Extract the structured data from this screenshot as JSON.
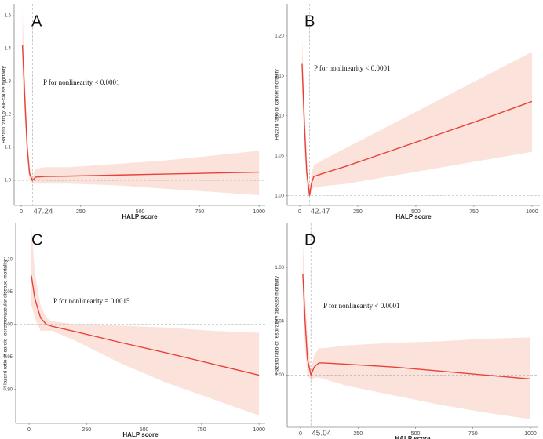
{
  "chart_data": [
    {
      "type": "line",
      "title": "A",
      "annotation": "P for nonlinearity < 0.0001",
      "xlabel": "HALP score",
      "ylabel": "Hazard ratio of All−cause mortality",
      "x": [
        5,
        15,
        25,
        35,
        47.24,
        60,
        100,
        200,
        400,
        600,
        800,
        1000
      ],
      "series": [
        {
          "color": "#e8413b",
          "band_color": "#fbe3dc",
          "values": [
            1.41,
            1.25,
            1.1,
            1.02,
            1.0,
            1.01,
            1.012,
            1.013,
            1.016,
            1.019,
            1.022,
            1.025
          ],
          "lower": [
            1.3,
            1.18,
            1.06,
            1.0,
            0.99,
            0.99,
            0.99,
            0.99,
            0.985,
            0.975,
            0.965,
            0.955
          ],
          "upper": [
            1.52,
            1.32,
            1.14,
            1.04,
            1.01,
            1.035,
            1.04,
            1.04,
            1.05,
            1.06,
            1.075,
            1.09
          ]
        }
      ],
      "xlim": [
        -30,
        1026
      ],
      "ylim": [
        0.924,
        1.536
      ],
      "xticks": [
        0,
        250,
        500,
        750,
        1000
      ],
      "yticks": [
        {
          "value": 1,
          "label": "1.0"
        },
        1.1,
        1.2,
        1.3,
        1.4,
        1.5
      ],
      "cutoff": 47.24,
      "reference": 1
    },
    {
      "type": "line",
      "title": "B",
      "annotation": "P for nonlinearity < 0.0001",
      "xlabel": "HALP score",
      "ylabel": "Hazard ratio of cancer mortality",
      "x": [
        10,
        20,
        30,
        42.47,
        50,
        60,
        100,
        200,
        400,
        600,
        800,
        1000
      ],
      "series": [
        {
          "color": "#e8413b",
          "band_color": "#fbe3dc",
          "values": [
            1.165,
            1.09,
            1.03,
            1.0,
            1.015,
            1.024,
            1.028,
            1.037,
            1.057,
            1.077,
            1.097,
            1.118
          ],
          "lower": [
            1.13,
            1.06,
            1.01,
            0.998,
            1.005,
            1.01,
            1.012,
            1.015,
            1.025,
            1.035,
            1.045,
            1.055
          ],
          "upper": [
            1.2,
            1.12,
            1.05,
            1.002,
            1.025,
            1.038,
            1.045,
            1.06,
            1.09,
            1.12,
            1.15,
            1.18
          ]
        }
      ],
      "xlim": [
        -54,
        1034
      ],
      "ylim": [
        0.988,
        1.24
      ],
      "xticks": [
        0,
        250,
        500,
        750,
        1000
      ],
      "yticks": [
        {
          "value": 1,
          "label": "1.00"
        },
        1.05,
        {
          "value": 1.1,
          "label": "1.10"
        },
        1.15,
        {
          "value": 1.2,
          "label": "1.20"
        }
      ],
      "cutoff": 42.47,
      "reference": 1
    },
    {
      "type": "line",
      "title": "C",
      "annotation": "P for nonlinearity = 0.0015",
      "xlabel": "HALP score",
      "ylabel": "Hazard ratio of cardio−cerebrovascular disease mortality",
      "x": [
        10,
        25,
        50,
        75,
        100,
        200,
        400,
        600,
        800,
        1000
      ],
      "series": [
        {
          "color": "#e8413b",
          "band_color": "#fbe3dc",
          "values": [
            1.075,
            1.04,
            1.01,
            1.0,
            0.997,
            0.989,
            0.972,
            0.956,
            0.939,
            0.922
          ],
          "lower": [
            1.03,
            1.01,
            0.99,
            0.99,
            0.99,
            0.975,
            0.94,
            0.91,
            0.885,
            0.86
          ],
          "upper": [
            1.15,
            1.08,
            1.03,
            1.01,
            1.005,
            1.0,
            0.998,
            0.995,
            0.99,
            0.987
          ]
        }
      ],
      "xlim": [
        -58,
        1027
      ],
      "ylim": [
        0.848,
        1.155
      ],
      "xticks": [
        0,
        250,
        500,
        750,
        1000
      ],
      "yticks": [
        {
          "value": 0.9,
          "label": "0.90"
        },
        0.95,
        {
          "value": 1,
          "label": "1.00"
        },
        1.05,
        {
          "value": 1.1,
          "label": "1.10"
        }
      ],
      "reference": 1
    },
    {
      "type": "line",
      "title": "D",
      "annotation": "P for nonlinearity < 0.0001",
      "xlabel": "HALP score",
      "ylabel": "Hazard ratio of respiratory disease mortality",
      "x": [
        10,
        20,
        30,
        45.04,
        60,
        80,
        100,
        200,
        400,
        600,
        800,
        1000
      ],
      "series": [
        {
          "color": "#e8413b",
          "band_color": "#fbe3dc",
          "values": [
            1.075,
            1.04,
            1.012,
            1.0,
            1.006,
            1.009,
            1.009,
            1.008,
            1.006,
            1.003,
            1.0,
            0.997
          ],
          "lower": [
            1.05,
            1.02,
            1.0,
            0.996,
            0.998,
            0.998,
            0.997,
            0.992,
            0.985,
            0.978,
            0.972,
            0.967
          ],
          "upper": [
            1.1,
            1.06,
            1.03,
            1.004,
            1.015,
            1.02,
            1.02,
            1.022,
            1.024,
            1.025,
            1.027,
            1.028
          ]
        }
      ],
      "xlim": [
        -58,
        1034
      ],
      "ylim": [
        0.961,
        1.113
      ],
      "xticks": [
        0,
        250,
        500,
        750,
        1000
      ],
      "yticks": [
        {
          "value": 1,
          "label": "1.00"
        },
        1.04,
        1.08
      ],
      "cutoff": 45.04,
      "reference": 1
    }
  ]
}
